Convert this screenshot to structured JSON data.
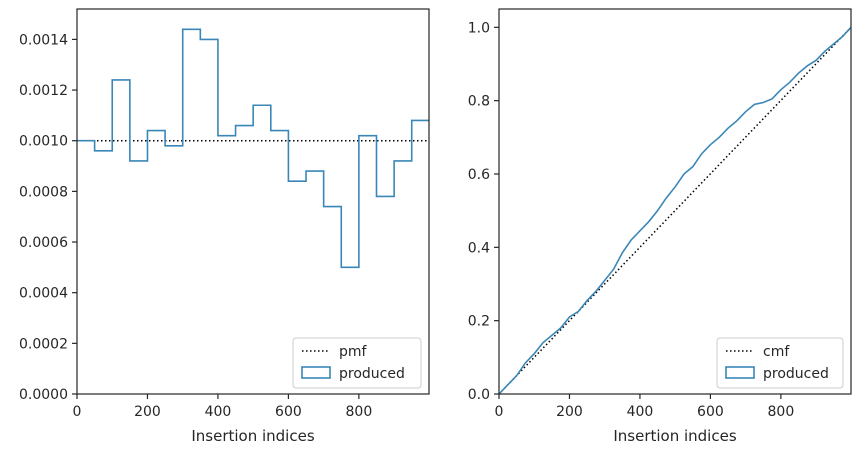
{
  "chart_data": [
    {
      "type": "line",
      "subtype": "histogram-step",
      "xlabel": "Insertion indices",
      "ylabel": "",
      "xlim": [
        0,
        999
      ],
      "ylim": [
        0,
        0.00152
      ],
      "xticks": [
        0,
        200,
        400,
        600,
        800
      ],
      "xtick_labels": [
        "0",
        "200",
        "400",
        "600",
        "800"
      ],
      "yticks": [
        0,
        0.0002,
        0.0004,
        0.0006,
        0.0008,
        0.001,
        0.0012,
        0.0014
      ],
      "ytick_labels": [
        "0.0000",
        "0.0002",
        "0.0004",
        "0.0006",
        "0.0008",
        "0.0010",
        "0.0012",
        "0.0014"
      ],
      "reference": {
        "name": "pmf",
        "value": 0.001,
        "style": "dotted",
        "color": "#000000"
      },
      "series": [
        {
          "name": "produced",
          "color": "#3a87b7",
          "bin_edges": [
            0,
            50,
            100,
            150,
            200,
            250,
            300,
            350,
            400,
            450,
            500,
            550,
            600,
            650,
            700,
            750,
            800,
            850,
            900,
            950,
            999
          ],
          "values": [
            0.001,
            0.00096,
            0.00124,
            0.00092,
            0.00104,
            0.00098,
            0.00144,
            0.0014,
            0.00102,
            0.00106,
            0.00114,
            0.00104,
            0.00084,
            0.00088,
            0.00074,
            0.0005,
            0.00102,
            0.00078,
            0.00092,
            0.00108
          ]
        }
      ],
      "legend": {
        "placement": "lower-right",
        "entries": [
          "pmf",
          "produced"
        ]
      },
      "grid": false
    },
    {
      "type": "line",
      "subtype": "cumulative-step",
      "xlabel": "Insertion indices",
      "ylabel": "",
      "xlim": [
        0,
        999
      ],
      "ylim": [
        0,
        1.05
      ],
      "xticks": [
        0,
        200,
        400,
        600,
        800
      ],
      "xtick_labels": [
        "0",
        "200",
        "400",
        "600",
        "800"
      ],
      "yticks": [
        0,
        0.2,
        0.4,
        0.6,
        0.8,
        1.0
      ],
      "ytick_labels": [
        "0.0",
        "0.2",
        "0.4",
        "0.6",
        "0.8",
        "1.0"
      ],
      "reference": {
        "name": "cmf",
        "from": [
          0,
          0
        ],
        "to": [
          999,
          1.0
        ],
        "style": "dotted",
        "color": "#000000"
      },
      "series": [
        {
          "name": "produced",
          "color": "#3a87b7",
          "x": [
            0,
            25,
            50,
            75,
            100,
            125,
            150,
            175,
            200,
            225,
            250,
            275,
            300,
            325,
            350,
            375,
            400,
            425,
            450,
            475,
            500,
            525,
            550,
            575,
            600,
            625,
            650,
            675,
            700,
            725,
            750,
            775,
            800,
            825,
            850,
            875,
            900,
            925,
            950,
            975,
            999
          ],
          "y": [
            0,
            0.025,
            0.05,
            0.085,
            0.11,
            0.14,
            0.16,
            0.18,
            0.21,
            0.225,
            0.255,
            0.28,
            0.31,
            0.34,
            0.385,
            0.42,
            0.445,
            0.47,
            0.5,
            0.535,
            0.565,
            0.6,
            0.62,
            0.655,
            0.68,
            0.7,
            0.725,
            0.745,
            0.77,
            0.79,
            0.795,
            0.805,
            0.83,
            0.85,
            0.875,
            0.895,
            0.91,
            0.935,
            0.955,
            0.975,
            1.0
          ]
        }
      ],
      "legend": {
        "placement": "lower-right",
        "entries": [
          "cmf",
          "produced"
        ]
      },
      "grid": false
    }
  ]
}
